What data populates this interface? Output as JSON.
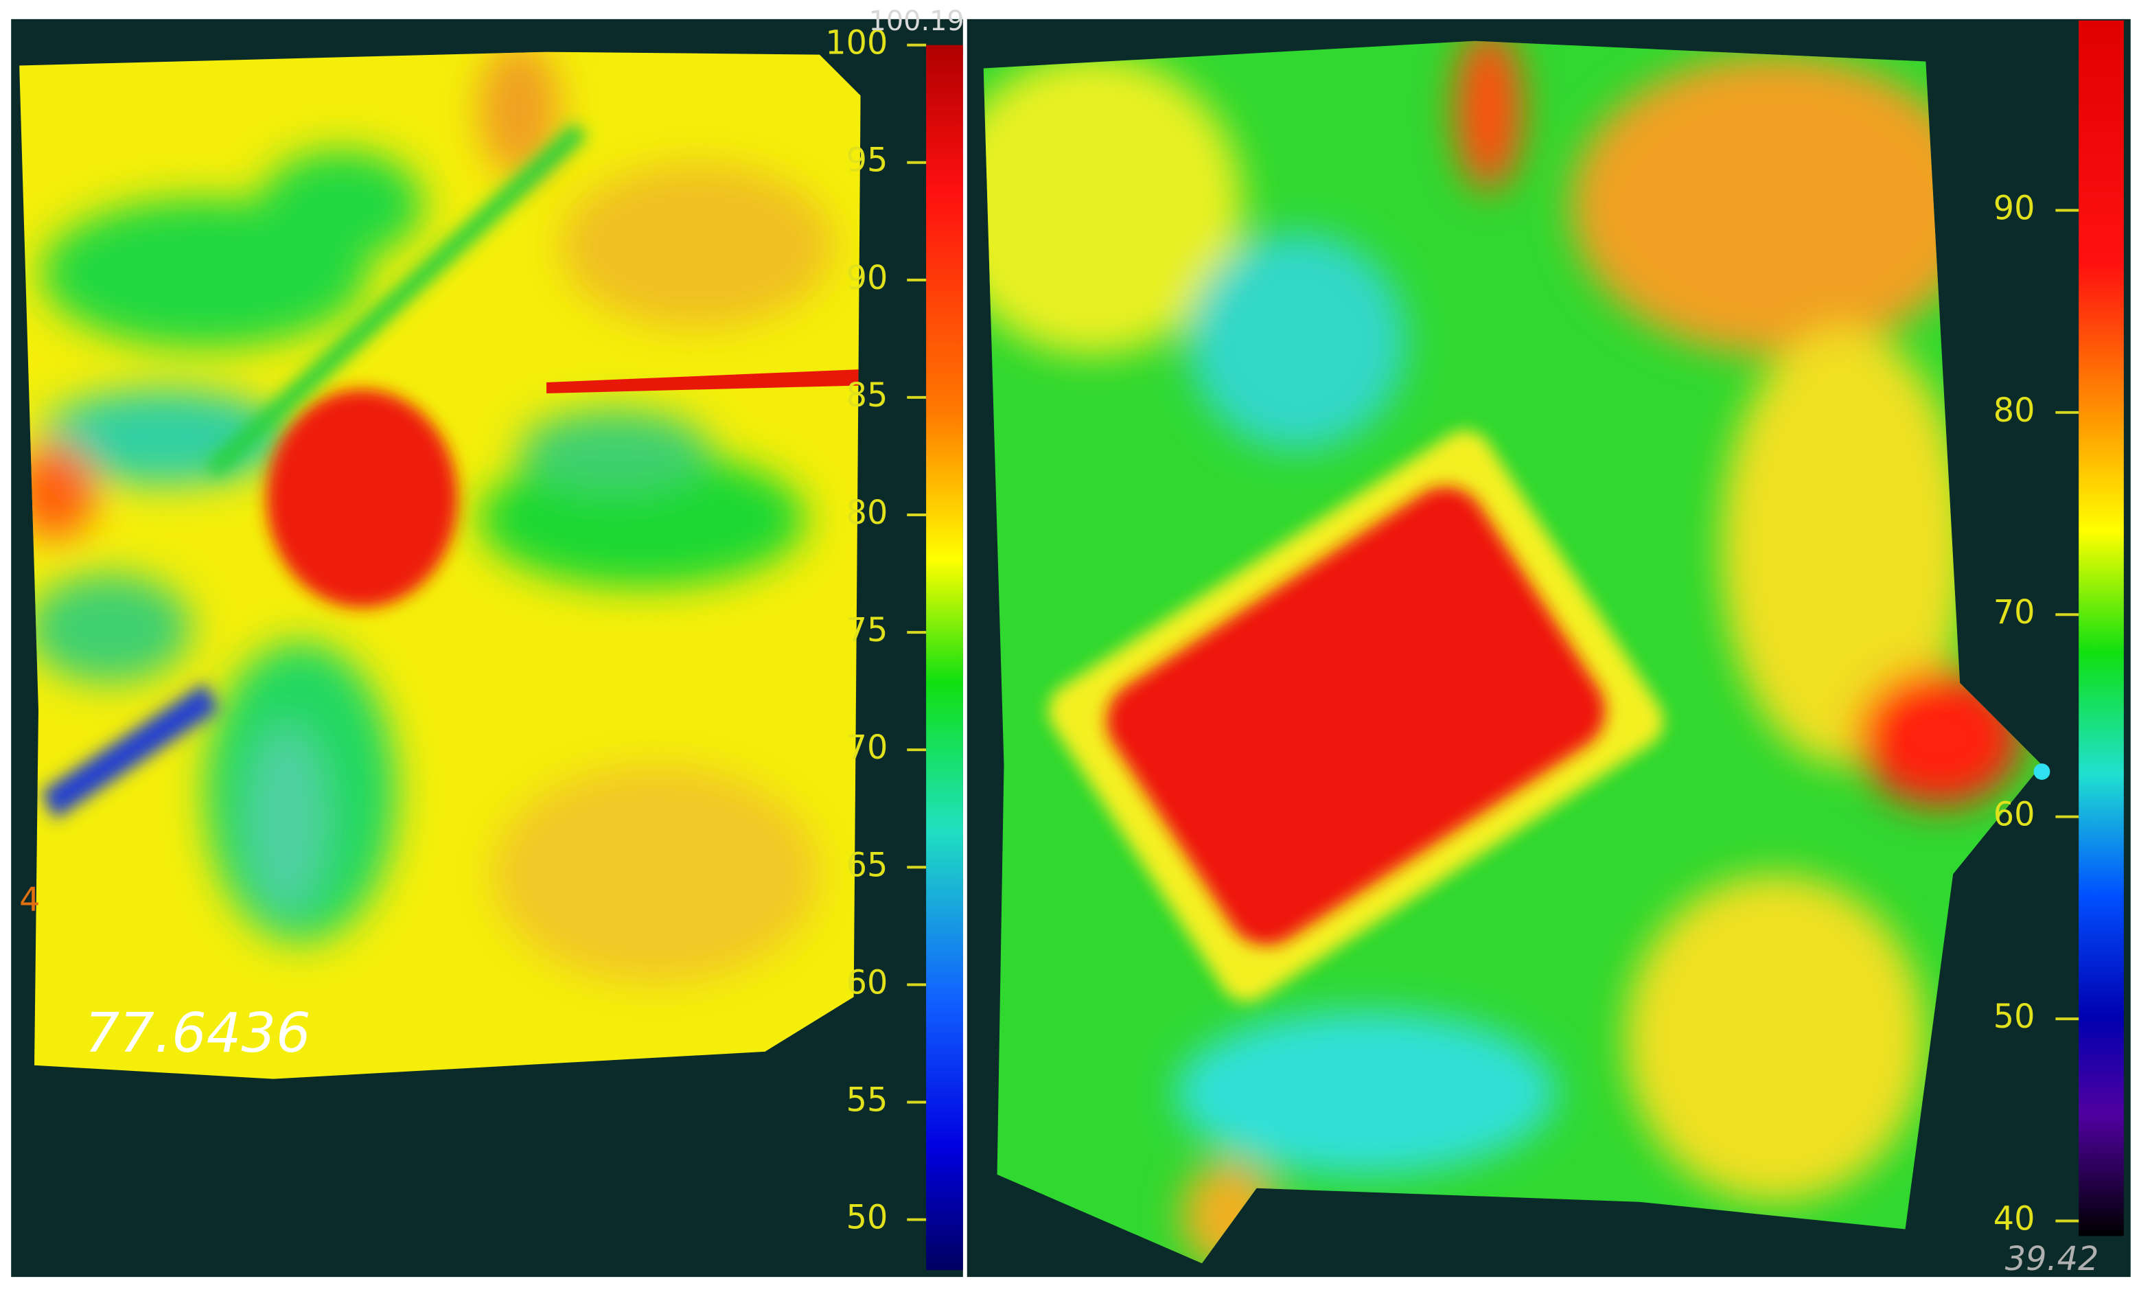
{
  "panels": [
    {
      "colorbar": {
        "max_label": "100.19",
        "ticks": [
          100,
          95,
          90,
          85,
          80,
          75,
          70,
          65,
          60,
          55,
          50
        ]
      },
      "probe_value": "77.6436",
      "axis_label": "4"
    },
    {
      "colorbar": {
        "ticks": [
          90,
          80,
          70,
          60,
          50,
          40
        ],
        "min_label": "39.42"
      }
    }
  ]
}
